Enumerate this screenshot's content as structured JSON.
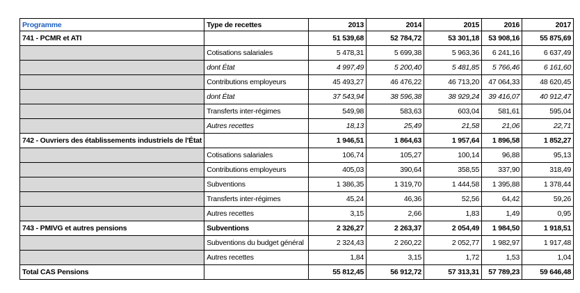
{
  "table": {
    "header": [
      "Programme",
      "Type de recettes",
      "2013",
      "2014",
      "2015",
      "2016",
      "2017"
    ],
    "rows": [
      {
        "programme": "741 - PCMR et ATI",
        "values": [
          "51 539,68",
          "52 784,72",
          "53 301,18",
          "53 908,16",
          "55 875,69"
        ],
        "style": "bold"
      },
      {
        "type": "Cotisations salariales",
        "values": [
          "5 478,31",
          "5 699,38",
          "5 963,36",
          "6 241,16",
          "6 637,49"
        ]
      },
      {
        "type": "dont État",
        "values": [
          "4 997,49",
          "5 200,40",
          "5 481,85",
          "5 766,46",
          "6 161,60"
        ],
        "style": "italic"
      },
      {
        "type": "Contributions employeurs",
        "values": [
          "45 493,27",
          "46 476,22",
          "46 713,20",
          "47 064,33",
          "48 620,45"
        ]
      },
      {
        "type": "dont État",
        "values": [
          "37 543,94",
          "38 596,38",
          "38 929,24",
          "39 416,07",
          "40 912,47"
        ],
        "style": "italic"
      },
      {
        "type": "Transferts inter-régimes",
        "values": [
          "549,98",
          "583,63",
          "603,04",
          "581,61",
          "595,04"
        ]
      },
      {
        "type": "Autres recettes",
        "values": [
          "18,13",
          "25,49",
          "21,58",
          "21,06",
          "22,71"
        ],
        "style": "italic"
      },
      {
        "programme": "742 - Ouvriers des établissements industriels de l'État",
        "values": [
          "1 946,51",
          "1 864,63",
          "1 957,64",
          "1 896,58",
          "1 852,27"
        ],
        "style": "bold"
      },
      {
        "type": "Cotisations salariales",
        "values": [
          "106,74",
          "105,27",
          "100,14",
          "96,88",
          "95,13"
        ]
      },
      {
        "type": "Contributions employeurs",
        "values": [
          "405,03",
          "390,64",
          "358,55",
          "337,90",
          "318,49"
        ]
      },
      {
        "type": "Subventions",
        "values": [
          "1 386,35",
          "1 319,70",
          "1 444,58",
          "1 395,88",
          "1 378,44"
        ]
      },
      {
        "type": "Transferts inter-régimes",
        "values": [
          "45,24",
          "46,36",
          "52,56",
          "64,42",
          "59,26"
        ]
      },
      {
        "type": "Autres recettes",
        "values": [
          "3,15",
          "2,66",
          "1,83",
          "1,49",
          "0,95"
        ]
      },
      {
        "programme": "743 - PMIVG et autres pensions",
        "type": "Subventions",
        "values": [
          "2 326,27",
          "2 263,37",
          "2 054,49",
          "1 984,50",
          "1 918,51"
        ],
        "style": "bold"
      },
      {
        "type": "Subventions du budget général",
        "values": [
          "2 324,43",
          "2 260,22",
          "2 052,77",
          "1 982,97",
          "1 917,48"
        ]
      },
      {
        "type": "Autres recettes",
        "values": [
          "1,84",
          "3,15",
          "1,72",
          "1,53",
          "1,04"
        ]
      },
      {
        "programme": "Total CAS Pensions",
        "values": [
          "55 812,45",
          "56 912,72",
          "57 313,31",
          "57 789,23",
          "59 646,48"
        ],
        "style": "bold"
      }
    ]
  }
}
